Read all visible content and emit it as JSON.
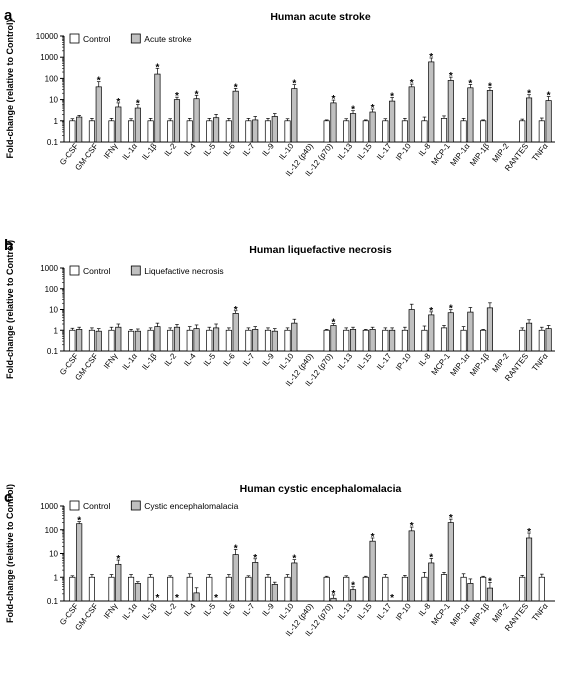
{
  "chart_data": [
    {
      "type": "bar",
      "panel": "a",
      "title": "Human acute stroke",
      "ylabel": "Fold-change (relative to Control)",
      "yscale": "log",
      "ylim": [
        0.1,
        10000
      ],
      "yticks": [
        "0.1",
        "1",
        "10",
        "100",
        "1000",
        "10000"
      ],
      "legend": {
        "placement": "top-left"
      },
      "categories": [
        "G-CSF",
        "GM-CSF",
        "IFNγ",
        "IL-1α",
        "IL-1β",
        "IL-2",
        "IL-4",
        "IL-5",
        "IL-6",
        "IL-7",
        "IL-9",
        "IL-10",
        "IL-12 (p40)",
        "IL-12 (p70)",
        "IL-13",
        "IL-15",
        "IL-17",
        "IP-10",
        "IL-8",
        "MCP-1",
        "MIP-1α",
        "MIP-1β",
        "MIP-2",
        "RANTES",
        "TNFα"
      ],
      "highlighted": [
        "IL-1α",
        "IL-2",
        "IL-4",
        "IL-6",
        "IL-10",
        "IL-12 (p70)",
        "IL-15",
        "IL-17",
        "IP-10",
        "IL-8",
        "MCP-1",
        "MIP-1α",
        "MIP-1β",
        "RANTES",
        "TNFα"
      ],
      "series": [
        {
          "name": "Control",
          "color": "#ffffff",
          "values": [
            1,
            1,
            1,
            1,
            1,
            1,
            1,
            1,
            1,
            1,
            1,
            1,
            null,
            1,
            1,
            1,
            1,
            1,
            1,
            1.3,
            1,
            1,
            null,
            1,
            1
          ],
          "errors": [
            0.25,
            0.3,
            0.3,
            0.25,
            0.3,
            0.25,
            0.3,
            0.3,
            0.3,
            0.3,
            0.3,
            0.25,
            null,
            0.1,
            0.25,
            0.1,
            0.25,
            0.3,
            0.5,
            0.4,
            0.3,
            0.1,
            null,
            0.2,
            0.35
          ]
        },
        {
          "name": "Acute stroke",
          "color": "#c0c0c0",
          "values": [
            1.5,
            40,
            4.5,
            4,
            160,
            10,
            11,
            1.4,
            25,
            1.1,
            1.6,
            33,
            null,
            7,
            2.2,
            2.6,
            8.5,
            40,
            600,
            80,
            36,
            27,
            null,
            12,
            9
          ],
          "errors": [
            0.3,
            30,
            2.5,
            1.8,
            140,
            3,
            5,
            0.6,
            9,
            0.5,
            0.6,
            18,
            null,
            2.5,
            0.8,
            1,
            4,
            14,
            320,
            35,
            16,
            10,
            null,
            5,
            5
          ]
        }
      ],
      "significant": [
        1,
        2,
        3,
        4,
        5,
        6,
        8,
        11,
        13,
        14,
        15,
        16,
        17,
        18,
        19,
        20,
        21,
        23,
        24
      ]
    },
    {
      "type": "bar",
      "panel": "b",
      "title": "Human liquefactive necrosis",
      "ylabel": "Fold-change (relative to Control)",
      "yscale": "log",
      "ylim": [
        0.1,
        1000
      ],
      "yticks": [
        "0.1",
        "1",
        "10",
        "100",
        "1000"
      ],
      "legend": {
        "placement": "top-left"
      },
      "categories": [
        "G-CSF",
        "GM-CSF",
        "IFNγ",
        "IL-1α",
        "IL-1β",
        "IL-2",
        "IL-4",
        "IL-5",
        "IL-6",
        "IL-7",
        "IL-9",
        "IL-10",
        "IL-12 (p40)",
        "IL-12 (p70)",
        "IL-13",
        "IL-15",
        "IL-17",
        "IP-10",
        "IL-8",
        "MCP-1",
        "MIP-1α",
        "MIP-1β",
        "MIP-2",
        "RANTES",
        "TNFα"
      ],
      "highlighted": [
        "IP-10",
        "MIP-1α",
        "MIP-1β"
      ],
      "series": [
        {
          "name": "Control",
          "color": "#ffffff",
          "values": [
            1,
            1,
            1,
            0.9,
            1,
            1,
            1,
            1,
            1,
            1,
            1,
            1,
            null,
            1,
            1,
            1,
            1,
            1,
            1,
            1.3,
            1,
            1,
            null,
            1,
            1
          ],
          "errors": [
            0.25,
            0.3,
            0.4,
            0.2,
            0.3,
            0.3,
            0.5,
            0.4,
            0.3,
            0.3,
            0.3,
            0.3,
            null,
            0.1,
            0.3,
            0.1,
            0.3,
            0.4,
            0.6,
            0.4,
            0.5,
            0.1,
            null,
            0.3,
            0.4
          ]
        },
        {
          "name": "Liquefactive necrosis",
          "color": "#c0c0c0",
          "values": [
            1.1,
            0.9,
            1.4,
            0.9,
            1.5,
            1.4,
            1.2,
            1.3,
            6.5,
            1.1,
            0.9,
            2.2,
            null,
            1.7,
            1.1,
            1.1,
            1,
            10,
            5.5,
            7,
            7.5,
            12,
            null,
            2.2,
            1.2
          ],
          "errors": [
            0.3,
            0.3,
            0.6,
            0.25,
            0.7,
            0.5,
            0.6,
            0.7,
            2.2,
            0.4,
            0.3,
            1.2,
            null,
            0.4,
            0.3,
            0.3,
            0.3,
            8,
            2.2,
            2.8,
            5,
            9,
            null,
            1,
            0.5
          ]
        }
      ],
      "significant": [
        8,
        13,
        18,
        19
      ]
    },
    {
      "type": "bar",
      "panel": "c",
      "title": "Human cystic encephalomalacia",
      "ylabel": "Fold-change (relative to Control)",
      "yscale": "log",
      "ylim": [
        0.1,
        1000
      ],
      "yticks": [
        "0.1",
        "1",
        "10",
        "100",
        "1000"
      ],
      "legend": {
        "placement": "top-left"
      },
      "categories": [
        "G-CSF",
        "GM-CSF",
        "IFNγ",
        "IL-1α",
        "IL-1β",
        "IL-2",
        "IL-4",
        "IL-5",
        "IL-6",
        "IL-7",
        "IL-9",
        "IL-10",
        "IL-12 (p40)",
        "IL-12 (p70)",
        "IL-13",
        "IL-15",
        "IL-17",
        "IP-10",
        "IL-8",
        "MCP-1",
        "MIP-1α",
        "MIP-1β",
        "MIP-2",
        "RANTES",
        "TNFα"
      ],
      "highlighted": [
        "G-CSF",
        "IL-6",
        "IL-7",
        "IL-10",
        "IL-15",
        "IP-10",
        "MCP-1"
      ],
      "series": [
        {
          "name": "Control",
          "color": "#ffffff",
          "values": [
            1,
            1,
            1,
            1,
            1,
            1,
            1,
            1,
            1,
            1,
            1,
            1,
            null,
            1,
            1,
            1,
            1,
            1,
            1,
            1.3,
            1,
            1,
            null,
            1,
            1
          ],
          "errors": [
            0.15,
            0.3,
            0.3,
            0.3,
            0.3,
            0.15,
            0.4,
            0.3,
            0.3,
            0.15,
            0.3,
            0.3,
            null,
            0.1,
            0.15,
            0.1,
            0.3,
            0.2,
            0.6,
            0.3,
            0.4,
            0.1,
            null,
            0.2,
            0.35
          ]
        },
        {
          "name": "Cystic encephalomalacia",
          "color": "#c0c0c0",
          "values": [
            180,
            null,
            3.5,
            0.55,
            null,
            null,
            0.22,
            null,
            9,
            4.2,
            0.5,
            4,
            null,
            0.13,
            0.3,
            33,
            null,
            90,
            4,
            200,
            0.55,
            0.35,
            null,
            45,
            null
          ],
          "errors": [
            40,
            null,
            1.8,
            0.1,
            null,
            null,
            0.14,
            null,
            6,
            1.8,
            0.12,
            1.5,
            null,
            0.05,
            0.1,
            12,
            null,
            40,
            2.2,
            80,
            0.3,
            0.25,
            null,
            28,
            null
          ]
        }
      ],
      "significant": [
        0,
        2,
        4,
        5,
        7,
        8,
        9,
        11,
        13,
        14,
        15,
        16,
        17,
        18,
        19,
        21,
        23
      ],
      "star_only": [
        4,
        5,
        7,
        16
      ]
    }
  ],
  "legend_labels": {
    "a": [
      "Control",
      "Acute stroke"
    ],
    "b": [
      "Control",
      "Liquefactive necrosis"
    ],
    "c": [
      "Control",
      "Cystic encephalomalacia"
    ]
  },
  "colors": {
    "highlight": "#d9261c",
    "normal": "#000000",
    "control_fill": "#ffffff",
    "case_fill": "#c0c0c0"
  }
}
